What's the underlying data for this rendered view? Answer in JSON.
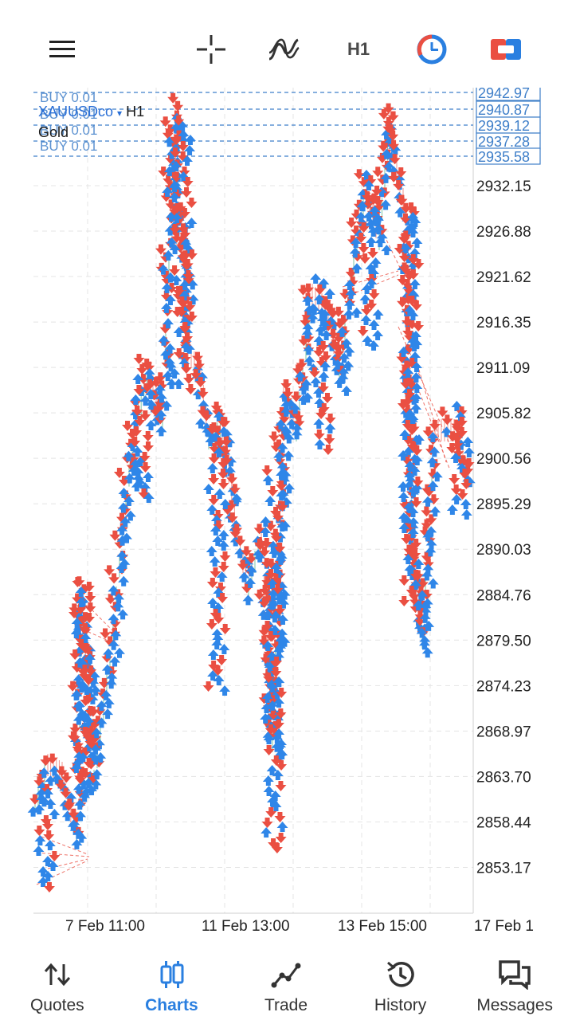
{
  "toolbar": {
    "timeframe": "H1",
    "icons": [
      "menu-icon",
      "crosshair-icon",
      "indicators-icon",
      "timeframe-button",
      "one-click-trading-icon",
      "trade-panel-icon"
    ]
  },
  "chart": {
    "symbol": "XAUUSDco",
    "timeframe": "H1",
    "description": "Gold",
    "order_labels": [
      "BUY 0.01",
      "BUY 0.01",
      "BUY 0.01",
      "BUY 0.01"
    ],
    "price_levels": [
      "2942.97",
      "2940.87",
      "2939.12",
      "2937.28",
      "2935.58"
    ],
    "price_axis": [
      "2932.15",
      "2926.88",
      "2921.62",
      "2916.35",
      "2911.09",
      "2905.82",
      "2900.56",
      "2895.29",
      "2890.03",
      "2884.76",
      "2879.50",
      "2874.23",
      "2868.97",
      "2863.70",
      "2858.44",
      "2853.17"
    ],
    "time_axis": [
      "7 Feb 11:00",
      "11 Feb 13:00",
      "13 Feb 15:00",
      "17 Feb 1"
    ],
    "colors": {
      "buy": "#2f86e8",
      "sell": "#ea4f42",
      "grid": "#e4e4e4",
      "level": "#3f7fc9"
    }
  },
  "nav": {
    "items": [
      {
        "label": "Quotes",
        "icon": "quotes-icon"
      },
      {
        "label": "Charts",
        "icon": "charts-icon",
        "active": true
      },
      {
        "label": "Trade",
        "icon": "trade-icon"
      },
      {
        "label": "History",
        "icon": "history-icon"
      },
      {
        "label": "Messages",
        "icon": "messages-icon"
      }
    ]
  }
}
